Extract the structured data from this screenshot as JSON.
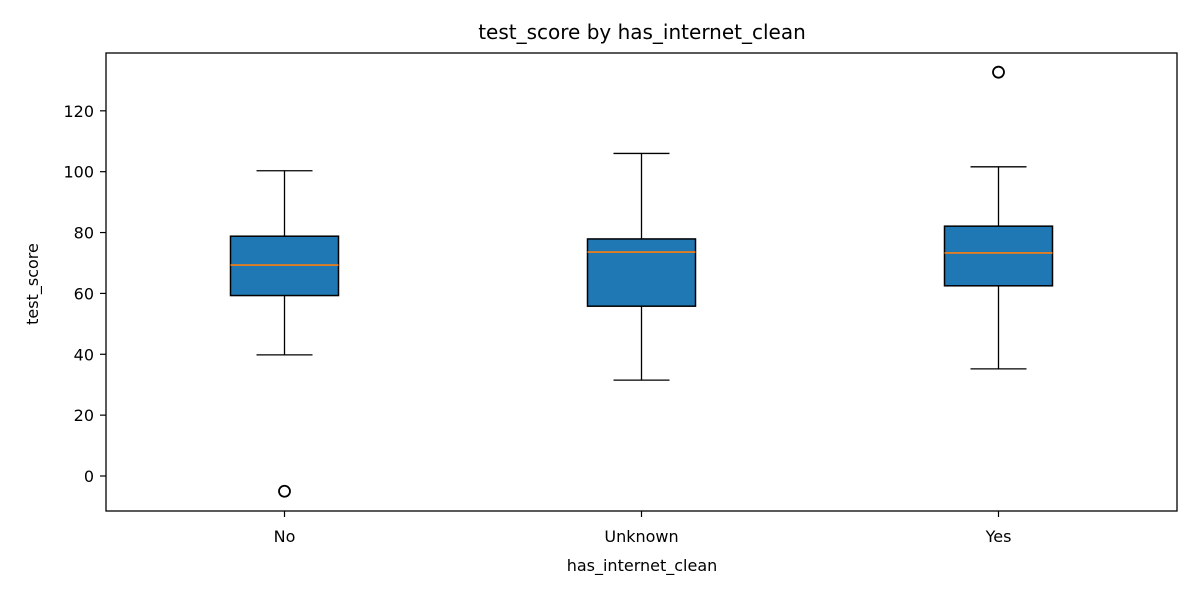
{
  "chart_data": {
    "type": "box",
    "title": "test_score by has_internet_clean",
    "xlabel": "has_internet_clean",
    "ylabel": "test_score",
    "categories": [
      "No",
      "Unknown",
      "Yes"
    ],
    "ylim": [
      -11.5,
      139
    ],
    "yticks": [
      0,
      20,
      40,
      60,
      80,
      100,
      120
    ],
    "grid": false,
    "legend": "none",
    "box_color": "#1f77b4",
    "median_color": "#ff7f0e",
    "boxes": [
      {
        "category": "No",
        "whisker_low": 39.8,
        "q1": 59.3,
        "median": 69.3,
        "q3": 78.8,
        "whisker_high": 100.3,
        "outliers": [
          -5.0
        ]
      },
      {
        "category": "Unknown",
        "whisker_low": 31.5,
        "q1": 55.8,
        "median": 73.6,
        "q3": 77.9,
        "whisker_high": 106.0,
        "outliers": []
      },
      {
        "category": "Yes",
        "whisker_low": 35.2,
        "q1": 62.5,
        "median": 73.3,
        "q3": 82.1,
        "whisker_high": 101.6,
        "outliers": [
          132.7
        ]
      }
    ]
  }
}
